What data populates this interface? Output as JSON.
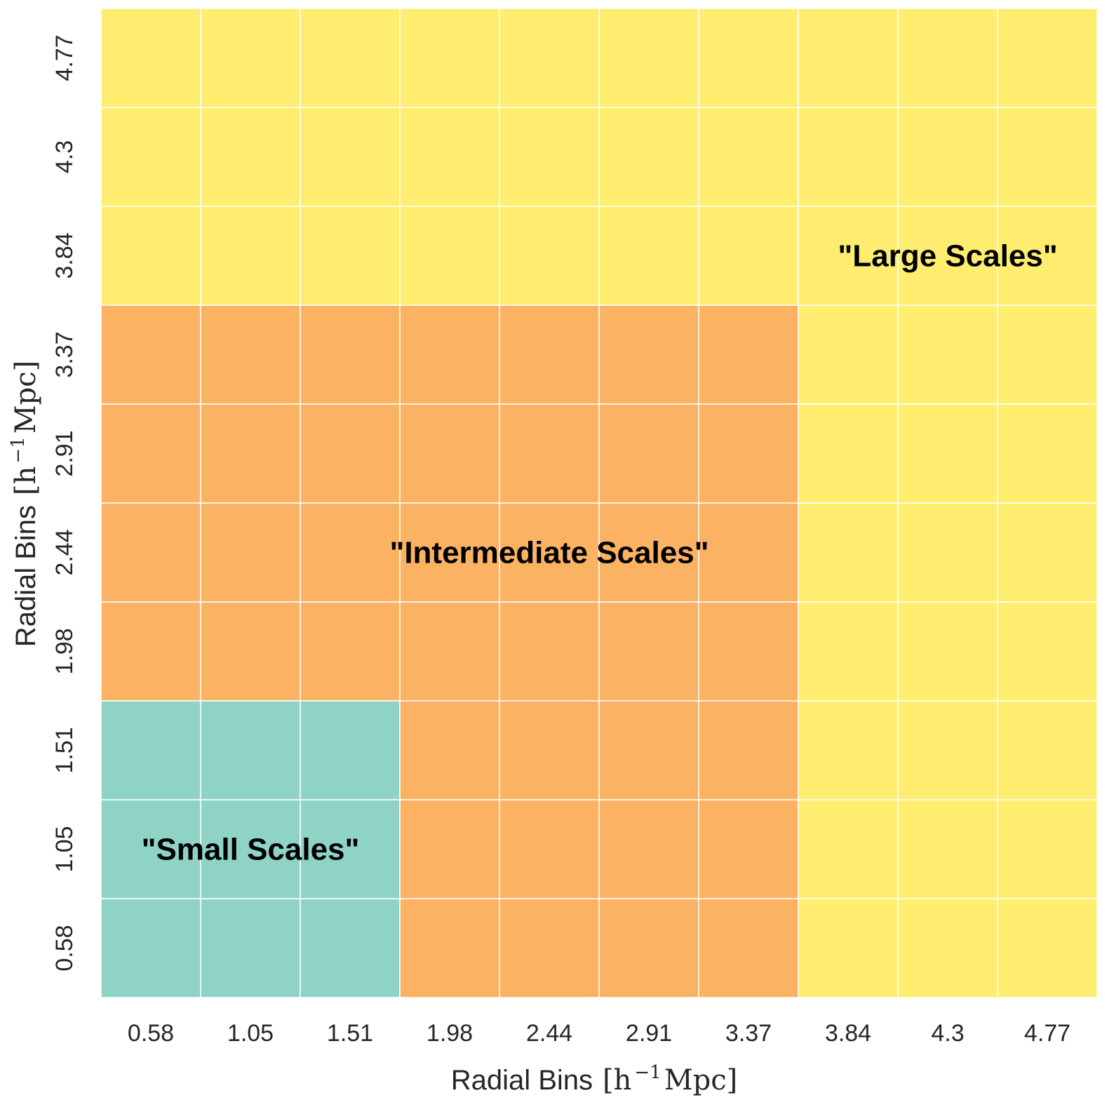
{
  "chart_data": {
    "type": "heatmap",
    "title": "",
    "xlabel": "Radial Bins",
    "xlabel_unit": "[h",
    "xlabel_exp": "−1",
    "xlabel_unit_end": " Mpc]",
    "ylabel": "Radial Bins",
    "ylabel_unit": "[h",
    "ylabel_exp": "−1",
    "ylabel_unit_end": " Mpc]",
    "x_ticks": [
      "0.58",
      "1.05",
      "1.51",
      "1.98",
      "2.44",
      "2.91",
      "3.37",
      "3.84",
      "4.3",
      "4.77"
    ],
    "y_ticks": [
      "0.58",
      "1.05",
      "1.51",
      "1.98",
      "2.44",
      "2.91",
      "3.37",
      "3.84",
      "4.3",
      "4.77"
    ],
    "categories_legend": [
      {
        "name": "\"Small Scales\"",
        "color": "#8fd3c7"
      },
      {
        "name": "\"Intermediate Scales\"",
        "color": "#fbb262"
      },
      {
        "name": "\"Large Scales\"",
        "color": "#ffed6f"
      }
    ],
    "cell_category_rule": "cell(i,j) category = max(scale(i), scale(j)); scale: bins 0.58–1.51 = small, 1.98–3.37 = intermediate, 3.84–4.77 = large",
    "scale_of_bin": [
      0,
      0,
      0,
      1,
      1,
      1,
      1,
      2,
      2,
      2
    ],
    "label_positions": [
      {
        "text": "\"Small Scales\"",
        "at_x": "1.05",
        "at_y": "1.05"
      },
      {
        "text": "\"Intermediate Scales\"",
        "at_x": "2.44",
        "at_y": "2.44"
      },
      {
        "text": "\"Large Scales\"",
        "at_x": "4.3",
        "at_y": "3.84"
      }
    ],
    "grid": true,
    "gridcolor": "#ffffff",
    "colorbar": false
  }
}
